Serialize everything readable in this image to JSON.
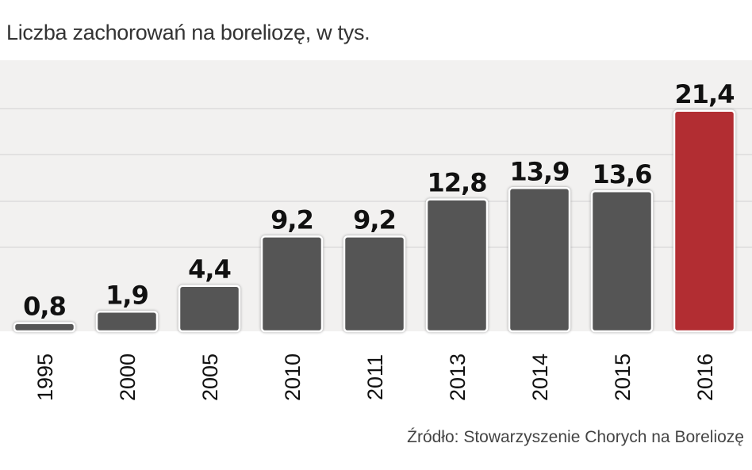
{
  "chart_data": {
    "type": "bar",
    "title": "Liczba zachorowań na boreliozę, w tys.",
    "categories": [
      "1995",
      "2000",
      "2005",
      "2010",
      "2011",
      "2013",
      "2014",
      "2015",
      "2016"
    ],
    "values": [
      0.8,
      1.9,
      4.4,
      9.2,
      9.2,
      12.8,
      13.9,
      13.6,
      21.4
    ],
    "value_labels": [
      "0,8",
      "1,9",
      "4,4",
      "9,2",
      "9,2",
      "12,8",
      "13,9",
      "13,6",
      "21,4"
    ],
    "xlabel": "",
    "ylabel": "",
    "grid": true,
    "source": "Źródło: Stowarzyszenie Chorych na Boreliozę",
    "colors": {
      "bar": "#555555",
      "highlight": "#b22d32",
      "plot_bg": "#f2f1f0",
      "grid": "#dcdcdc"
    },
    "highlight_index": 8
  }
}
